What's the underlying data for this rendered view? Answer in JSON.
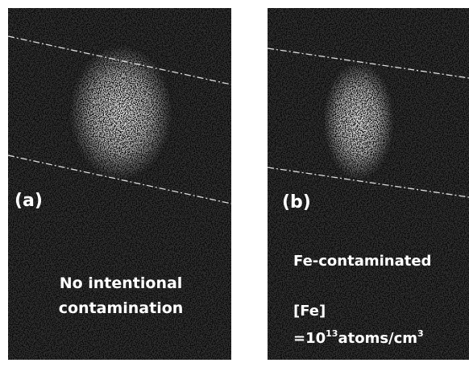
{
  "panels": [
    {
      "label": "(a)",
      "caption": [
        "No intentional",
        "contamination"
      ]
    },
    {
      "label": "(b)",
      "caption": [
        "Fe-contaminated"
      ],
      "concentration": {
        "name": "[Fe]",
        "prefix": "=10",
        "exponent": "13",
        "unit": "atoms/cm",
        "unit_exponent": "3"
      }
    }
  ]
}
